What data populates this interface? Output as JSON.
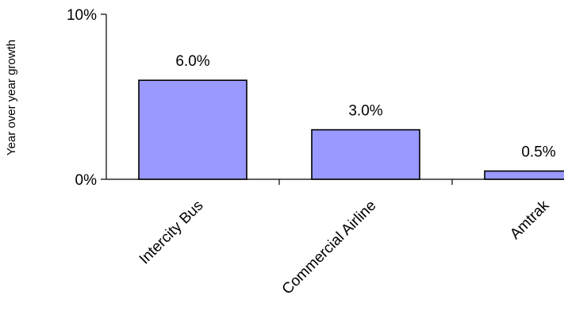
{
  "chart_data": {
    "type": "bar",
    "title": "",
    "xlabel": "",
    "ylabel": "Year over year growth",
    "categories": [
      "Intercity Bus",
      "Commercial Airline",
      "Amtrak"
    ],
    "values": [
      6.0,
      3.0,
      0.5
    ],
    "data_labels": [
      "6.0%",
      "3.0%",
      "0.5%"
    ],
    "ylim": [
      0,
      10
    ],
    "y_ticks": [
      {
        "value": 0,
        "label": "0%"
      },
      {
        "value": 10,
        "label": "10%"
      }
    ],
    "bar_color": "#9999ff",
    "bar_edge_color": "#000000",
    "grid": false,
    "legend": "none"
  }
}
